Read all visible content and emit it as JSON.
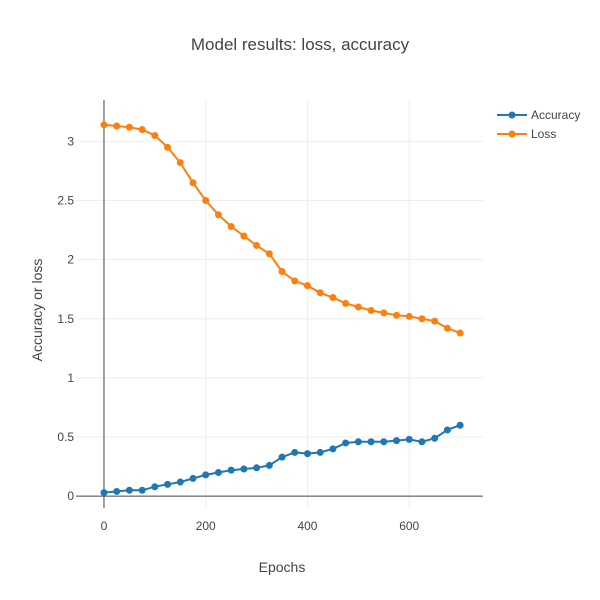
{
  "chart_data": {
    "type": "line",
    "title": "Model results: loss, accuracy",
    "xlabel": "Epochs",
    "ylabel": "Accuracy or loss",
    "xlim": [
      -55,
      745
    ],
    "ylim": [
      -0.1,
      3.35
    ],
    "x_ticks": [
      0,
      200,
      400,
      600
    ],
    "y_ticks": [
      0,
      0.5,
      1,
      1.5,
      2,
      2.5,
      3
    ],
    "grid": true,
    "legend": "top-right",
    "series": [
      {
        "name": "Accuracy",
        "color": "#1f77b4",
        "x": [
          0,
          25,
          50,
          75,
          100,
          125,
          150,
          175,
          200,
          225,
          250,
          275,
          300,
          325,
          350,
          375,
          400,
          425,
          450,
          475,
          500,
          525,
          550,
          575,
          600,
          625,
          650,
          675,
          700
        ],
        "values": [
          0.03,
          0.04,
          0.05,
          0.05,
          0.08,
          0.1,
          0.12,
          0.15,
          0.18,
          0.2,
          0.22,
          0.23,
          0.24,
          0.26,
          0.33,
          0.37,
          0.36,
          0.37,
          0.4,
          0.45,
          0.46,
          0.46,
          0.46,
          0.47,
          0.48,
          0.46,
          0.49,
          0.56,
          0.6
        ]
      },
      {
        "name": "Loss",
        "color": "#ff7f0e",
        "x": [
          0,
          25,
          50,
          75,
          100,
          125,
          150,
          175,
          200,
          225,
          250,
          275,
          300,
          325,
          350,
          375,
          400,
          425,
          450,
          475,
          500,
          525,
          550,
          575,
          600,
          625,
          650,
          675,
          700
        ],
        "values": [
          3.14,
          3.13,
          3.12,
          3.1,
          3.05,
          2.95,
          2.82,
          2.65,
          2.5,
          2.38,
          2.28,
          2.2,
          2.12,
          2.05,
          1.9,
          1.82,
          1.78,
          1.72,
          1.68,
          1.63,
          1.6,
          1.57,
          1.55,
          1.53,
          1.52,
          1.5,
          1.48,
          1.42,
          1.38
        ]
      }
    ]
  }
}
